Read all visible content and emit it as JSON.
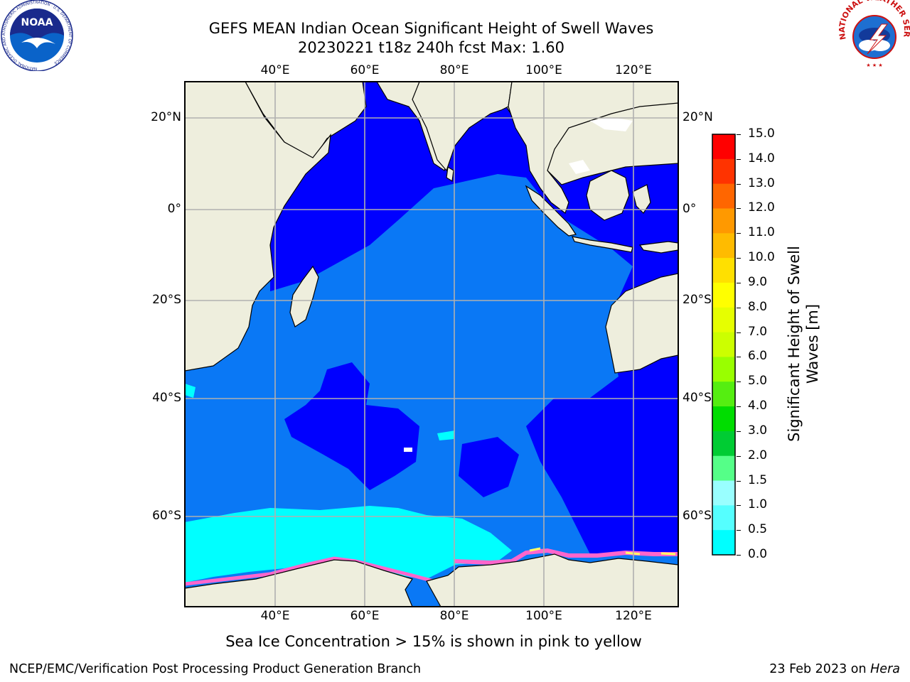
{
  "title": {
    "line1": "GEFS MEAN Indian Ocean Significant Height of Swell Waves",
    "line2": "20230221 t18z 240h fcst   Max: 1.60"
  },
  "map": {
    "lon_ticks": [
      "40°E",
      "60°E",
      "80°E",
      "100°E",
      "120°E"
    ],
    "lat_ticks": [
      "20°N",
      "0°",
      "20°S",
      "40°S",
      "60°S"
    ],
    "lon_range": [
      20,
      130
    ],
    "lat_range": [
      -76,
      28
    ],
    "land_color": "#eeeedd",
    "ocean_colors": {
      "band_0_0.5": "#0000ff",
      "band_0.5_1.0": "#0a78f5",
      "band_1.0_1.5": "#00ffff",
      "ice_edge": [
        "#ff66cc",
        "#ffff66"
      ]
    }
  },
  "colorbar": {
    "title_line1": "Significant Height of Swell",
    "title_line2": "Waves [m]",
    "labels": [
      "15.0",
      "14.0",
      "13.0",
      "12.0",
      "11.0",
      "10.0",
      "9.0",
      "8.0",
      "7.0",
      "6.0",
      "5.0",
      "4.0",
      "3.0",
      "2.0",
      "1.5",
      "1.0",
      "0.5",
      "0.0"
    ],
    "colors": [
      "#ff0000",
      "#ff3300",
      "#ff6600",
      "#ff9900",
      "#ffbb00",
      "#ffe000",
      "#ffff00",
      "#e6ff00",
      "#ccff00",
      "#99ff00",
      "#55ee11",
      "#00dd00",
      "#00cc33",
      "#55ff88",
      "#99ffff",
      "#55ffff",
      "#00ffff",
      "#0a78f5",
      "#0000ff"
    ]
  },
  "note": "Sea Ice Concentration > 15% is shown in pink to yellow",
  "footer": {
    "left": "NCEP/EMC/Verification Post Processing Product Generation Branch",
    "right_prefix": "23 Feb 2023 on ",
    "right_machine": "Hera"
  },
  "logos": {
    "left": {
      "text": "NOAA",
      "ring": "NATIONAL OCEANIC AND ATMOSPHERIC ADMINISTRATION · U.S. DEPARTMENT OF COMMERCE"
    },
    "right": {
      "ring": "NATIONAL WEATHER SERVICE"
    }
  }
}
